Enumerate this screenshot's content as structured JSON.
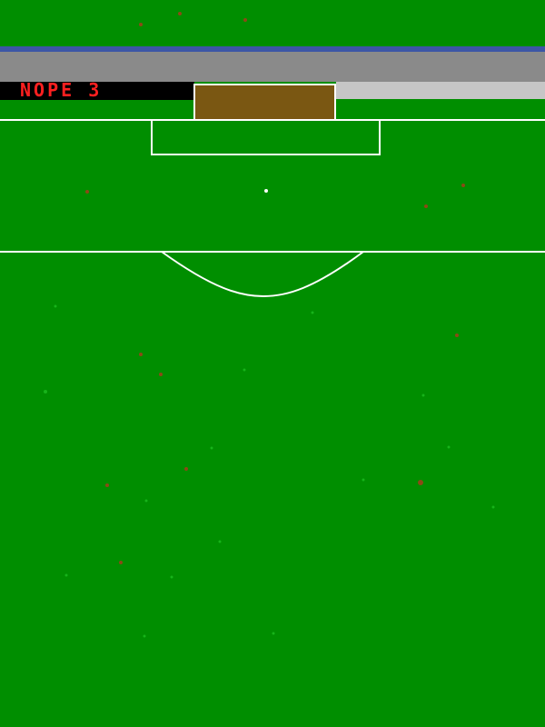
{
  "scoreboard": {
    "text": "NOPE 3"
  },
  "colors": {
    "grass": "#008e00",
    "blue_stripe": "#3c56a6",
    "stand_gray": "#8a8a8a",
    "stand_light_gray": "#c6c6c6",
    "scoreboard_bg": "#000000",
    "scoreboard_text": "#ff2020",
    "goal_net": "#7a5712",
    "lines": "#ffffff",
    "dirt_speck": "#8a4a16",
    "grass_speck": "#17b31a"
  }
}
